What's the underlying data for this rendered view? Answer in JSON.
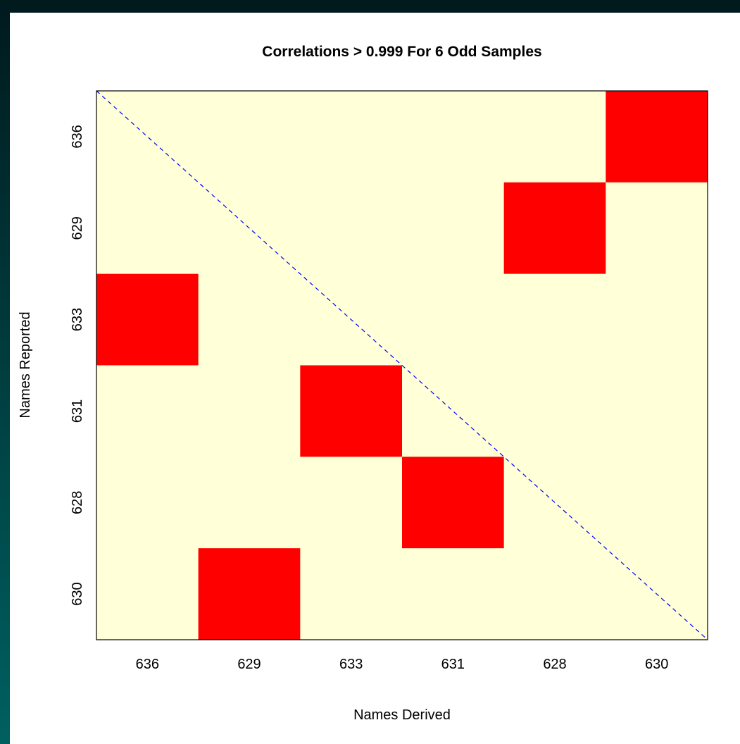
{
  "colors": {
    "background_gradient_top": "#001a1e",
    "background_gradient_bottom": "#006060",
    "panel": "#ffffff",
    "cell_background": "#ffffd8",
    "match_cell": "#ff0000",
    "diagonal": "#0000ff"
  },
  "chart_data": {
    "type": "heatmap",
    "title": "Correlations > 0.999 For 6 Odd Samples",
    "xlabel": "Names Derived",
    "ylabel": "Names Reported",
    "x_categories": [
      "636",
      "629",
      "633",
      "631",
      "628",
      "630"
    ],
    "y_categories_top_to_bottom": [
      "636",
      "629",
      "633",
      "631",
      "628",
      "630"
    ],
    "matches": [
      {
        "derived": "630",
        "reported": "636"
      },
      {
        "derived": "628",
        "reported": "629"
      },
      {
        "derived": "636",
        "reported": "633"
      },
      {
        "derived": "633",
        "reported": "631"
      },
      {
        "derived": "631",
        "reported": "628"
      },
      {
        "derived": "629",
        "reported": "630"
      }
    ],
    "diagonal": "dashed line from top-left to bottom-right",
    "grid": false,
    "legend": "none"
  }
}
